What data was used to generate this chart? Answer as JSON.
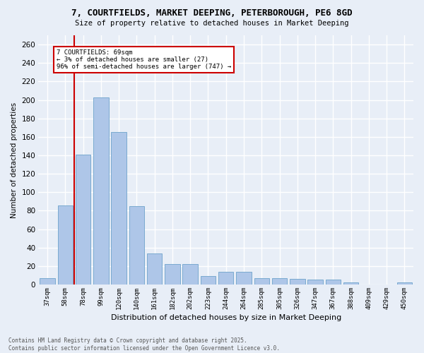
{
  "title_line1": "7, COURTFIELDS, MARKET DEEPING, PETERBOROUGH, PE6 8GD",
  "title_line2": "Size of property relative to detached houses in Market Deeping",
  "xlabel": "Distribution of detached houses by size in Market Deeping",
  "ylabel": "Number of detached properties",
  "bar_values": [
    7,
    86,
    141,
    203,
    165,
    85,
    34,
    22,
    22,
    9,
    14,
    14,
    7,
    7,
    6,
    5,
    5,
    2,
    0,
    0,
    2
  ],
  "categories": [
    "37sqm",
    "58sqm",
    "78sqm",
    "99sqm",
    "120sqm",
    "140sqm",
    "161sqm",
    "182sqm",
    "202sqm",
    "223sqm",
    "244sqm",
    "264sqm",
    "285sqm",
    "305sqm",
    "326sqm",
    "347sqm",
    "367sqm",
    "388sqm",
    "409sqm",
    "429sqm",
    "450sqm"
  ],
  "bar_color": "#aec6e8",
  "bar_edge_color": "#7aaad0",
  "background_color": "#e8eef7",
  "grid_color": "#ffffff",
  "vline_x_index": 1.5,
  "marker_label": "7 COURTFIELDS: 69sqm",
  "marker_pct_smaller": "← 3% of detached houses are smaller (27)",
  "marker_pct_larger": "96% of semi-detached houses are larger (747) →",
  "annotation_box_color": "#ffffff",
  "annotation_border_color": "#cc0000",
  "vline_color": "#cc0000",
  "ylim": [
    0,
    270
  ],
  "yticks": [
    0,
    20,
    40,
    60,
    80,
    100,
    120,
    140,
    160,
    180,
    200,
    220,
    240,
    260
  ],
  "footer_line1": "Contains HM Land Registry data © Crown copyright and database right 2025.",
  "footer_line2": "Contains public sector information licensed under the Open Government Licence v3.0."
}
